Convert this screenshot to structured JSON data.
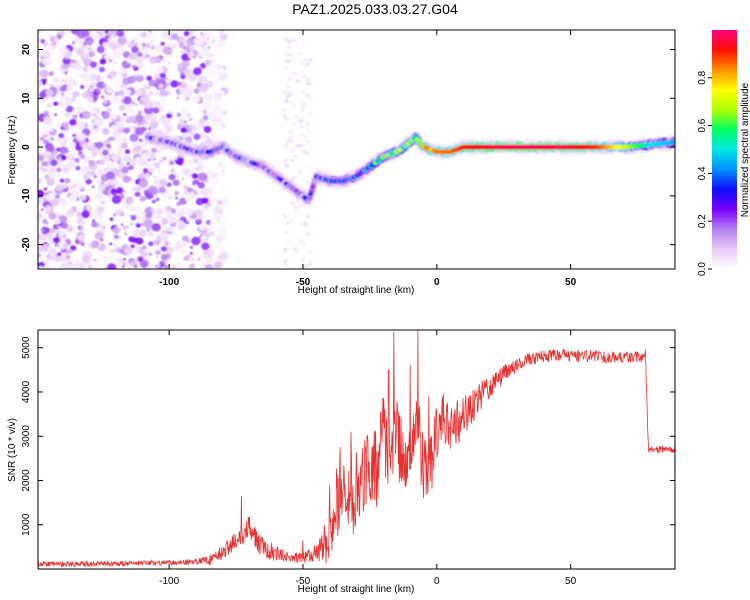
{
  "figure": {
    "title": "PAZ1.2025.033.03.27.G04"
  },
  "colormap": {
    "stops": [
      "#ffffff",
      "#e6c8f5",
      "#b37ff0",
      "#7a00ff",
      "#1010ff",
      "#0090ff",
      "#00e6e6",
      "#00ff60",
      "#b0ff00",
      "#ffff00",
      "#ff9000",
      "#ff1000",
      "#ff0080"
    ]
  },
  "chart_data": [
    {
      "type": "heatmap",
      "title": "",
      "xlabel": "Height of straight line (km)",
      "ylabel": "Frequency (Hz)",
      "xlim": [
        -149,
        89
      ],
      "ylim": [
        -25,
        24
      ],
      "xticks": [
        -100,
        -50,
        0,
        50
      ],
      "yticks": [
        -20,
        -10,
        0,
        10,
        20
      ],
      "xtick_labels": [
        "-100",
        "-50",
        "0",
        "50"
      ],
      "ytick_labels": [
        "-20",
        "-10",
        "0",
        "10",
        "20"
      ],
      "colorbar": {
        "label": "Normalized spectral amplitude",
        "range": [
          0,
          1
        ],
        "ticks": [
          0.0,
          0.2,
          0.4,
          0.6,
          0.8
        ],
        "tick_labels": [
          "0.0",
          "0.2",
          "0.4",
          "0.6",
          "0.8"
        ]
      },
      "ridge": {
        "height_km": [
          -108,
          -100,
          -95,
          -90,
          -85,
          -80,
          -75,
          -70,
          -65,
          -60,
          -55,
          -50,
          -48,
          -45,
          -40,
          -35,
          -30,
          -25,
          -20,
          -15,
          -10,
          -8,
          -5,
          0,
          5,
          10,
          20,
          30,
          40,
          50,
          60,
          70,
          80,
          89
        ],
        "frequency_hz": [
          2,
          1,
          0,
          -1,
          -1,
          0,
          -2,
          -3,
          -4,
          -6,
          -8,
          -10,
          -11,
          -6,
          -7,
          -7,
          -6,
          -4,
          -2,
          -1,
          1,
          2,
          0,
          -1,
          -1,
          0,
          0,
          0,
          0,
          0,
          0,
          0,
          0.5,
          1
        ],
        "amplitude": [
          0.22,
          0.2,
          0.2,
          0.25,
          0.25,
          0.25,
          0.22,
          0.22,
          0.22,
          0.2,
          0.2,
          0.25,
          0.25,
          0.25,
          0.3,
          0.33,
          0.35,
          0.45,
          0.55,
          0.6,
          0.65,
          0.6,
          0.75,
          0.85,
          0.85,
          0.9,
          0.95,
          0.97,
          0.97,
          0.95,
          0.9,
          0.7,
          0.5,
          0.45
        ]
      },
      "noise_region_km": [
        -149,
        -85
      ],
      "noise_amplitude": [
        0.02,
        0.25
      ]
    },
    {
      "type": "line",
      "title": "",
      "xlabel": "Height of straight line (km)",
      "ylabel": "SNR (10 * v/v)",
      "xlim": [
        -149,
        89
      ],
      "ylim": [
        0,
        5400
      ],
      "xticks": [
        -100,
        -50,
        0,
        50
      ],
      "yticks": [
        1000,
        2000,
        3000,
        4000,
        5000
      ],
      "xtick_labels": [
        "-100",
        "-50",
        "0",
        "50"
      ],
      "ytick_labels": [
        "1000",
        "2000",
        "3000",
        "4000",
        "5000"
      ],
      "color": "#e83030",
      "x": [
        -149,
        -140,
        -130,
        -120,
        -110,
        -100,
        -95,
        -90,
        -85,
        -80,
        -75,
        -72,
        -70,
        -68,
        -65,
        -60,
        -55,
        -50,
        -47,
        -45,
        -42,
        -40,
        -38,
        -35,
        -33,
        -30,
        -27,
        -25,
        -22,
        -20,
        -18,
        -15,
        -12,
        -10,
        -8,
        -5,
        -3,
        0,
        3,
        5,
        8,
        10,
        15,
        20,
        25,
        30,
        35,
        40,
        45,
        50,
        55,
        60,
        65,
        70,
        75,
        78,
        79,
        80,
        85,
        89
      ],
      "y": [
        120,
        110,
        120,
        120,
        130,
        140,
        150,
        170,
        200,
        380,
        650,
        750,
        1000,
        700,
        500,
        350,
        260,
        250,
        300,
        400,
        550,
        800,
        1300,
        2200,
        1500,
        1800,
        2200,
        2100,
        2300,
        3300,
        2300,
        3000,
        2300,
        2700,
        3500,
        2300,
        2200,
        3000,
        3400,
        3000,
        3300,
        3500,
        3800,
        4100,
        4400,
        4600,
        4750,
        4800,
        4850,
        4820,
        4820,
        4800,
        4780,
        4800,
        4780,
        4800,
        2750,
        2700,
        2700,
        2700
      ],
      "spikes": [
        {
          "x": -73,
          "y": 1650
        },
        {
          "x": -50,
          "y": 650
        },
        {
          "x": -40,
          "y": 1900
        },
        {
          "x": -32,
          "y": 3100
        },
        {
          "x": -18,
          "y": 4500
        },
        {
          "x": -16,
          "y": 5350
        },
        {
          "x": -10,
          "y": 4600
        },
        {
          "x": -7,
          "y": 5400
        },
        {
          "x": -3,
          "y": 3900
        },
        {
          "x": 78,
          "y": 4950
        }
      ],
      "noise_amplitude": [
        {
          "x": -149,
          "a": 60
        },
        {
          "x": -90,
          "a": 60
        },
        {
          "x": -80,
          "a": 180
        },
        {
          "x": -65,
          "a": 260
        },
        {
          "x": -55,
          "a": 100
        },
        {
          "x": -45,
          "a": 180
        },
        {
          "x": -38,
          "a": 900
        },
        {
          "x": -20,
          "a": 900
        },
        {
          "x": 0,
          "a": 700
        },
        {
          "x": 10,
          "a": 500
        },
        {
          "x": 20,
          "a": 300
        },
        {
          "x": 30,
          "a": 150
        },
        {
          "x": 79,
          "a": 130
        },
        {
          "x": 80,
          "a": 80
        },
        {
          "x": 89,
          "a": 80
        }
      ]
    }
  ]
}
